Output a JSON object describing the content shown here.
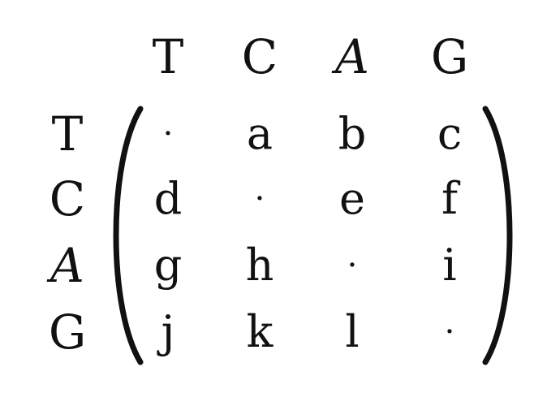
{
  "column_headers": [
    "T",
    "C",
    "A",
    "G"
  ],
  "row_headers": [
    "T",
    "C",
    "A",
    "G"
  ],
  "matrix": [
    [
      "·",
      "a",
      "b",
      "c"
    ],
    [
      "d",
      "·",
      "e",
      "f"
    ],
    [
      "g",
      "h",
      "·",
      "i"
    ],
    [
      "j",
      "k",
      "l",
      "·"
    ]
  ]
}
